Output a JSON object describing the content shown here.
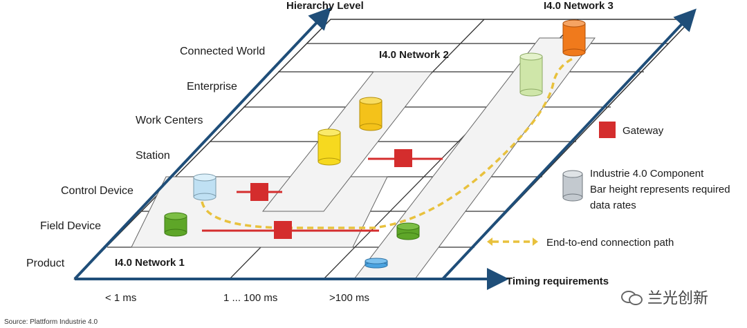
{
  "axes": {
    "hierarchy_label": "Hierarchy Level",
    "timing_label": "Timing requirements"
  },
  "hierarchy_levels": [
    "Connected  World",
    "Enterprise",
    "Work Centers",
    "Station",
    "Control Device",
    "Field Device",
    "Product"
  ],
  "timing_ticks": [
    "< 1  ms",
    "1 ... 100     ms",
    ">100  ms"
  ],
  "networks": [
    "I4.0 Network 1",
    "I4.0 Network 2",
    "I4.0 Network 3"
  ],
  "legend": {
    "gateway": "Gateway",
    "component_line1": "Industrie 4.0 Component",
    "component_line2": "Bar height represents required",
    "component_line3": "data rates",
    "path": "End-to-end connection path"
  },
  "source": "Source: Plattform Industrie 4.0",
  "watermark": "兰光创新",
  "colors": {
    "axis": "#1f4e79",
    "gateway": "#d42d2d",
    "path": "#e8c13d",
    "orange": "#f07a1c",
    "yellow": "#f6d91f",
    "light_green": "#cfe6a9",
    "green": "#5ea628",
    "light_blue": "#bfe0f3",
    "blue": "#4aa3e0",
    "gray": "#c3c9cf"
  }
}
